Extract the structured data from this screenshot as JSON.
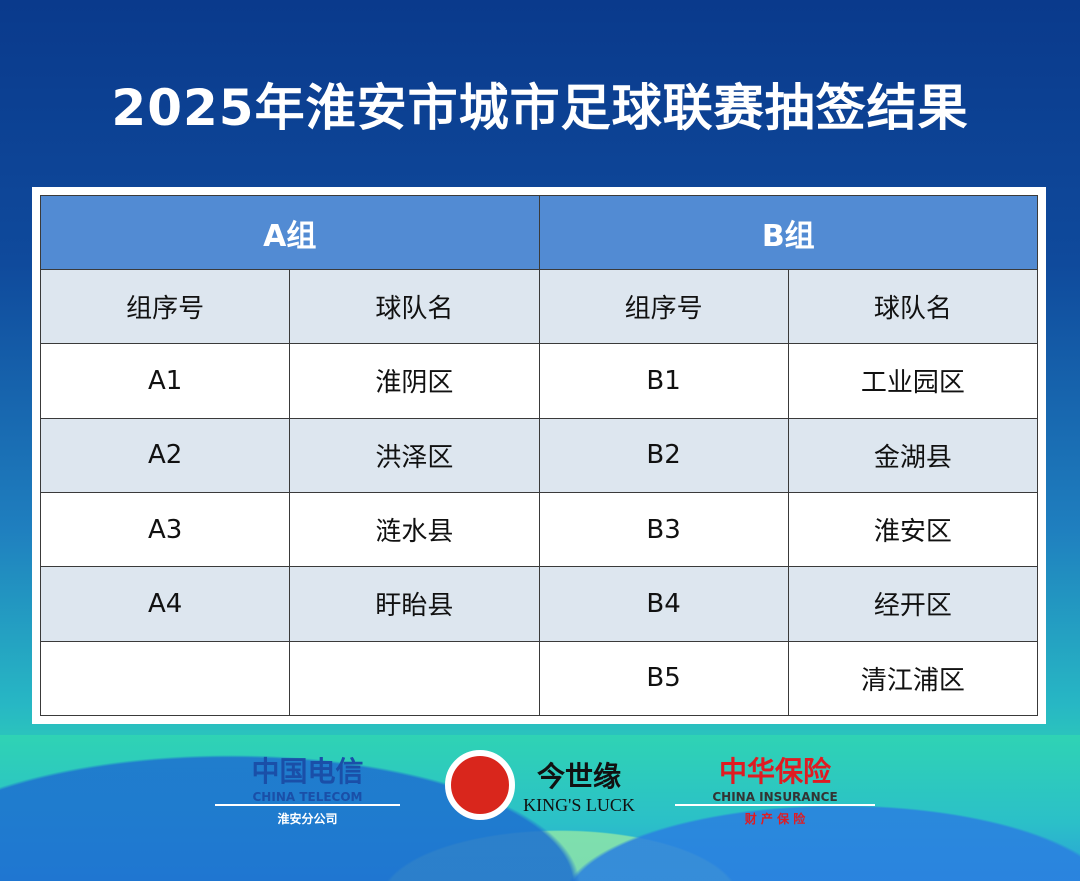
{
  "title": "2025年淮安市城市足球联赛抽签结果",
  "groups": [
    {
      "name": "A组"
    },
    {
      "name": "B组"
    }
  ],
  "headers": {
    "seq": "组序号",
    "team": "球队名"
  },
  "rows": [
    {
      "a_seq": "A1",
      "a_team": "淮阴区",
      "b_seq": "B1",
      "b_team": "工业园区"
    },
    {
      "a_seq": "A2",
      "a_team": "洪泽区",
      "b_seq": "B2",
      "b_team": "金湖县"
    },
    {
      "a_seq": "A3",
      "a_team": "涟水县",
      "b_seq": "B3",
      "b_team": "淮安区"
    },
    {
      "a_seq": "A4",
      "a_team": "盱眙县",
      "b_seq": "B4",
      "b_team": "经开区"
    },
    {
      "a_seq": "",
      "a_team": "",
      "b_seq": "B5",
      "b_team": "清江浦区"
    }
  ],
  "sponsors": [
    {
      "name": "中国电信",
      "en": "CHINA TELECOM",
      "sub": "淮安分公司",
      "color": "#1a4fa8"
    },
    {
      "name": "今世缘",
      "en": "KING'S LUCK",
      "color": "#d9261c"
    },
    {
      "name": "中华保险",
      "en": "CHINA INSURANCE",
      "sub": "财 产 保 险",
      "color": "#e01b22"
    }
  ]
}
